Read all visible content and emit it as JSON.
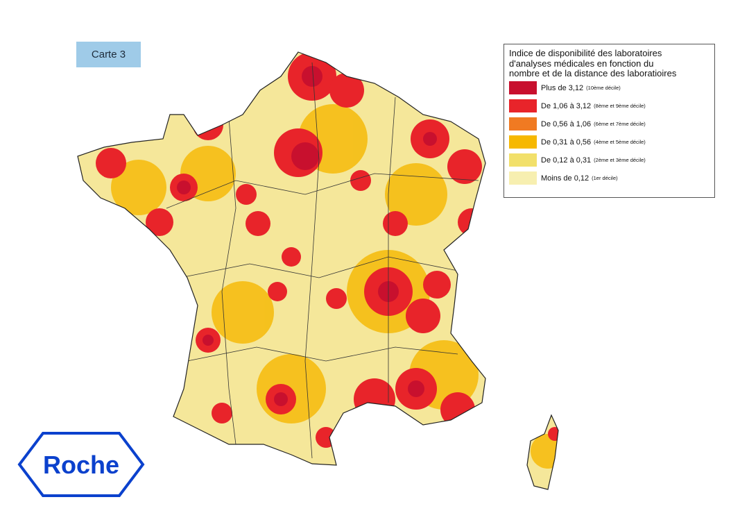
{
  "badge": "Carte 3",
  "legend": {
    "title": [
      "Indice de disponibilité des laboratoires",
      "d'analyses médicales en fonction du",
      "nombre et de la distance des laboratioires"
    ],
    "items": [
      {
        "label": "Plus de 3,12",
        "note": "(10ème décile)",
        "color": "#c8102e"
      },
      {
        "label": "De 1,06 à 3,12",
        "note": "(8ème et 9ème décile)",
        "color": "#e8242a"
      },
      {
        "label": "De 0,56 à 1,06",
        "note": "(6ème et 7ème décile)",
        "color": "#f07a22"
      },
      {
        "label": "De 0,31 à 0,56",
        "note": "(4ème et 5ème décile)",
        "color": "#f6b800"
      },
      {
        "label": "De 0,12 à 0,31",
        "note": "(2ème et 3ème décile)",
        "color": "#f2e06a"
      },
      {
        "label": "Moins de 0,12",
        "note": "(1er décile)",
        "color": "#f7efb0"
      }
    ]
  },
  "logo": "Roche"
}
